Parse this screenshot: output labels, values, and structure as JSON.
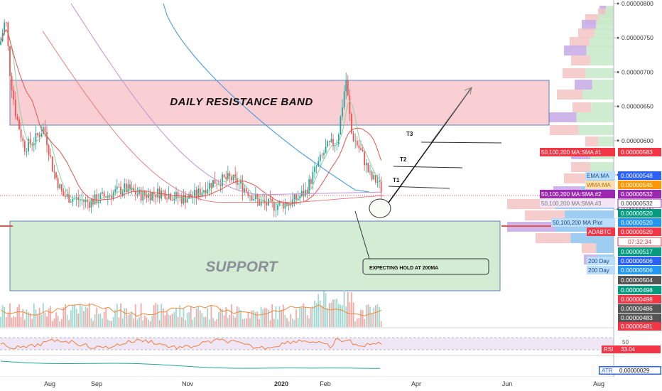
{
  "chart_data": {
    "type": "candlestick",
    "symbol": "ADABTC",
    "countdown": "07:32:34",
    "price_axis": {
      "min": 4.81e-06,
      "max": 8e-06,
      "ticks": [
        "0.00000800",
        "0.00000750",
        "0.00000700",
        "0.00000650",
        "0.00000600",
        "0.00000550",
        "0.00000500"
      ]
    },
    "time_axis": {
      "labels": [
        "Aug",
        "Sep",
        "Nov",
        "2020",
        "Feb",
        "Apr",
        "Jun",
        "Aug"
      ]
    },
    "annotations": {
      "resistance": "DAILY RESISTANCE BAND",
      "support": "SUPPORT",
      "callout": "EXPECTING HOLD AT 200MA",
      "t1": "T1",
      "t2": "T2",
      "t3": "T3"
    },
    "axis_tags": [
      {
        "label": "50,100,200 MA:SMA #1",
        "value": "0.00000583",
        "color": "#f23645"
      },
      {
        "label": "EMA:MA",
        "value": "0.00000548",
        "color": "#2962ff"
      },
      {
        "label": "WMA:MA",
        "value": "0.00000545",
        "color": "#ff9800"
      },
      {
        "label": "50,100,200 MA:SMA #2",
        "value": "0.00000532",
        "color": "#9c27b0"
      },
      {
        "label": "50,100,200 MA:SMA #3",
        "value": "0.00000532",
        "color": "#e1bee7"
      },
      {
        "label": "",
        "value": "0.00000520",
        "color": "#089981"
      },
      {
        "label": "50,100,200 MA:Plot",
        "value": "0.00000520",
        "color": "#2196f3"
      },
      {
        "label": "ADABTC",
        "value": "0.00000520",
        "color": "#f23645"
      },
      {
        "label": "",
        "value": "0.00000517",
        "color": "#089981"
      },
      {
        "label": "200 Day",
        "value": "0.00000506",
        "color": "#2962ff"
      },
      {
        "label": "200 Day",
        "value": "0.00000506",
        "color": "#2196f3"
      },
      {
        "label": "",
        "value": "0.00000504",
        "color": "#555555"
      },
      {
        "label": "",
        "value": "0.00000498",
        "color": "#089981"
      },
      {
        "label": "",
        "value": "0.00000498",
        "color": "#f23645"
      },
      {
        "label": "",
        "value": "0.00000486",
        "color": "#555555"
      },
      {
        "label": "",
        "value": "0.00000483",
        "color": "#555555"
      },
      {
        "label": "",
        "value": "0.00000481",
        "color": "#f23645"
      }
    ],
    "rsi": {
      "label": "RSI",
      "value": "33.04",
      "level": "50"
    },
    "atr": {
      "label": "ATR",
      "value": "0.00000029"
    },
    "colors": {
      "up": "#26a69a",
      "down": "#ef5350",
      "resistance": "#f8c9cc",
      "support": "#cfe9cf",
      "ma200": "#4a9ad9",
      "ma_red": "#e0554f",
      "ma_purple": "#c39ad4"
    }
  }
}
